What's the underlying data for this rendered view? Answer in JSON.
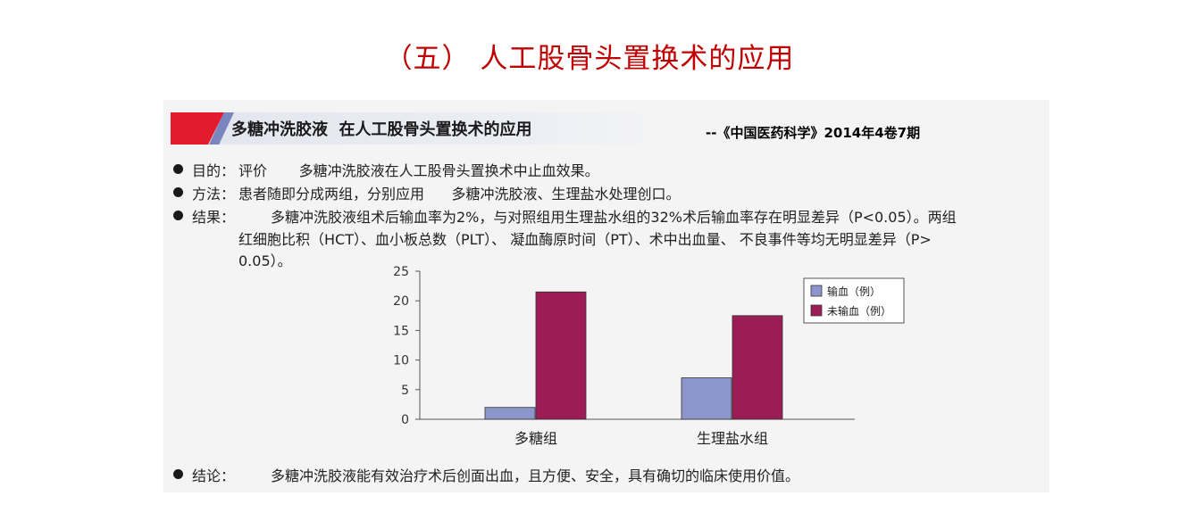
{
  "slide": {
    "title": "（五） 人工股骨头置换术的应用"
  },
  "banner": {
    "title": "多糖冲洗胶液  在人工股骨头置换术的应用"
  },
  "source": {
    "citation": "--《中国医药科学》2014年4卷7期"
  },
  "items": {
    "goal": {
      "label": "目的：",
      "text": "评价       多糖冲洗胶液在人工股骨头置换术中止血效果。"
    },
    "method": {
      "label": "方法：",
      "text": "患者随即分成两组，分别应用      多糖冲洗胶液、生理盐水处理创口。"
    },
    "result": {
      "label": "结果：",
      "line1": "多糖冲洗胶液组术后输血率为2%，与对照组用生理盐水组的32%术后输血率存在明显差异（P<0.05）。两组",
      "line2": "红细胞比积（HCT）、血小板总数（PLT）、 凝血酶原时间（PT）、术中出血量、 不良事件等均无明显差异（P>",
      "line3": "0.05）。"
    },
    "conclusion": {
      "label": "结论：",
      "text": "多糖冲洗胶液能有效治疗术后创面出血，且方便、安全，具有确切的临床使用价值。"
    }
  },
  "chart_data": {
    "type": "bar",
    "categories": [
      "多糖组",
      "生理盐水组"
    ],
    "series": [
      {
        "name": "输血（例）",
        "values": [
          2,
          7
        ],
        "color": "#8d96cc"
      },
      {
        "name": "未输血（例）",
        "values": [
          21.5,
          17.5
        ],
        "color": "#9c1d55"
      }
    ],
    "ylim": [
      0,
      25
    ],
    "yticks": [
      0,
      5,
      10,
      15,
      20,
      25
    ],
    "legend_position": "top-right",
    "grid": false,
    "title": "",
    "xlabel": "",
    "ylabel": ""
  }
}
